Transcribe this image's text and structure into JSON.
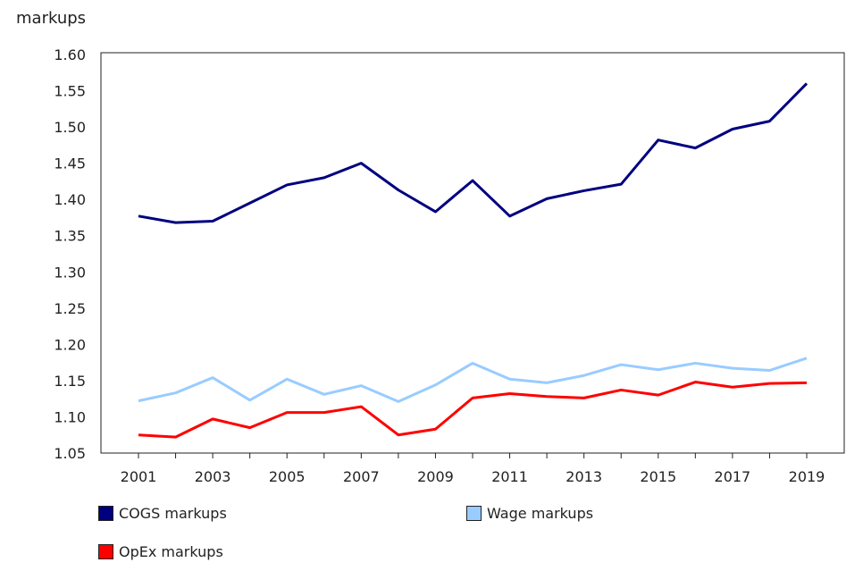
{
  "chart_data": {
    "type": "line",
    "ylabel": "markups",
    "ylim": [
      1.05,
      1.6
    ],
    "yticks": [
      "1.60",
      "1.55",
      "1.50",
      "1.45",
      "1.40",
      "1.35",
      "1.30",
      "1.25",
      "1.20",
      "1.15",
      "1.10",
      "1.05"
    ],
    "x": [
      2001,
      2002,
      2003,
      2004,
      2005,
      2006,
      2007,
      2008,
      2009,
      2010,
      2011,
      2012,
      2013,
      2014,
      2015,
      2016,
      2017,
      2018,
      2019
    ],
    "xticks": [
      "2001",
      "2003",
      "2005",
      "2007",
      "2009",
      "2011",
      "2013",
      "2015",
      "2017",
      "2019"
    ],
    "grid": false,
    "legend_position": "bottom",
    "series": [
      {
        "name": "COGS markups",
        "color": "#00007f",
        "values": [
          1.377,
          1.368,
          1.37,
          1.395,
          1.42,
          1.43,
          1.45,
          1.413,
          1.383,
          1.426,
          1.377,
          1.401,
          1.412,
          1.421,
          1.482,
          1.471,
          1.497,
          1.508,
          1.56
        ]
      },
      {
        "name": "Wage markups",
        "color": "#99ccff",
        "values": [
          1.122,
          1.133,
          1.154,
          1.123,
          1.152,
          1.131,
          1.143,
          1.121,
          1.144,
          1.174,
          1.152,
          1.147,
          1.157,
          1.172,
          1.165,
          1.174,
          1.167,
          1.164,
          1.181
        ]
      },
      {
        "name": "OpEx markups",
        "color": "#ff0000",
        "values": [
          1.075,
          1.072,
          1.097,
          1.085,
          1.106,
          1.106,
          1.114,
          1.075,
          1.083,
          1.126,
          1.132,
          1.128,
          1.126,
          1.137,
          1.13,
          1.148,
          1.141,
          1.146,
          1.147
        ]
      }
    ]
  }
}
